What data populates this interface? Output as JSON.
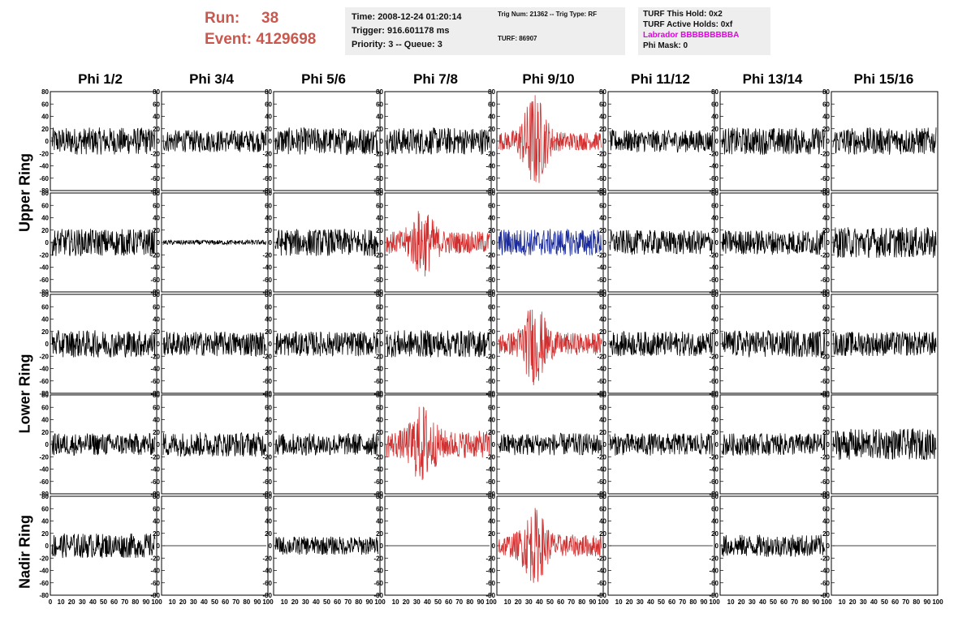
{
  "header": {
    "run_label": "Run:",
    "run_value": "38",
    "event_label": "Event:",
    "event_value": "4129698",
    "time": "Time: 2008-12-24 01:20:14",
    "trigger": "Trigger: 916.601178 ms",
    "priority": "Priority: 3 -- Queue: 3",
    "trig_num": "Trig Num: 21362 -- Trig Type: RF",
    "turf": "TURF: 86907",
    "turf_this_hold": "TURF This Hold: 0x2",
    "turf_active_holds": "TURF Active Holds: 0xf",
    "labrador": "Labrador BBBBBBBBBA",
    "phi_mask": "Phi Mask: 0"
  },
  "columns": [
    "Phi 1/2",
    "Phi 3/4",
    "Phi 5/6",
    "Phi 7/8",
    "Phi 9/10",
    "Phi 11/12",
    "Phi 13/14",
    "Phi 15/16"
  ],
  "rings": [
    "Upper Ring",
    "Lower Ring",
    "Nadir Ring"
  ],
  "colors": {
    "black": "#000000",
    "red": "#d03030",
    "blue": "#1a2a9a",
    "run_text": "#c9584f",
    "labrador": "#e600e6"
  },
  "chart_data": {
    "type": "line",
    "xlim": [
      0,
      100
    ],
    "ylim": [
      -80,
      80
    ],
    "x_ticks": [
      0,
      10,
      20,
      30,
      40,
      50,
      60,
      70,
      80,
      90,
      100
    ],
    "y_ticks": [
      -80,
      -60,
      -40,
      -20,
      0,
      20,
      40,
      60,
      80
    ],
    "note_series": "Each panel is a waveform trace (5 rows x 8 columns). Amplitude given in data units; shapes approximate the screenshot.",
    "panels": [
      [
        {
          "color": "black",
          "amp": 22,
          "burst": 0
        },
        {
          "color": "black",
          "amp": 18,
          "burst": 0
        },
        {
          "color": "black",
          "amp": 22,
          "burst": 0
        },
        {
          "color": "black",
          "amp": 22,
          "burst": 0
        },
        {
          "color": "red",
          "amp": 15,
          "burst": 65
        },
        {
          "color": "black",
          "amp": 18,
          "burst": 0
        },
        {
          "color": "black",
          "amp": 22,
          "burst": 0
        },
        {
          "color": "black",
          "amp": 22,
          "burst": 0
        }
      ],
      [
        {
          "color": "black",
          "amp": 22,
          "burst": 0
        },
        {
          "color": "black",
          "amp": 4,
          "burst": 0
        },
        {
          "color": "black",
          "amp": 22,
          "burst": 0
        },
        {
          "color": "red",
          "amp": 18,
          "burst": 40
        },
        {
          "color": "blue",
          "amp": 22,
          "burst": 0
        },
        {
          "color": "black",
          "amp": 20,
          "burst": 0
        },
        {
          "color": "black",
          "amp": 20,
          "burst": 0
        },
        {
          "color": "black",
          "amp": 25,
          "burst": 0
        }
      ],
      [
        {
          "color": "black",
          "amp": 22,
          "burst": 0
        },
        {
          "color": "black",
          "amp": 20,
          "burst": 0
        },
        {
          "color": "black",
          "amp": 20,
          "burst": 0
        },
        {
          "color": "black",
          "amp": 22,
          "burst": 0
        },
        {
          "color": "red",
          "amp": 18,
          "burst": 50
        },
        {
          "color": "black",
          "amp": 20,
          "burst": 0
        },
        {
          "color": "black",
          "amp": 22,
          "burst": 0
        },
        {
          "color": "black",
          "amp": 20,
          "burst": 0
        }
      ],
      [
        {
          "color": "black",
          "amp": 18,
          "burst": 0
        },
        {
          "color": "black",
          "amp": 20,
          "burst": 0
        },
        {
          "color": "black",
          "amp": 18,
          "burst": 0
        },
        {
          "color": "red",
          "amp": 22,
          "burst": 45
        },
        {
          "color": "black",
          "amp": 18,
          "burst": 0
        },
        {
          "color": "black",
          "amp": 18,
          "burst": 0
        },
        {
          "color": "black",
          "amp": 18,
          "burst": 0
        },
        {
          "color": "black",
          "amp": 25,
          "burst": 0
        }
      ],
      [
        {
          "color": "black",
          "amp": 20,
          "burst": 0
        },
        {
          "color": "black",
          "amp": 0,
          "burst": 0
        },
        {
          "color": "black",
          "amp": 15,
          "burst": 0
        },
        {
          "color": "black",
          "amp": 0,
          "burst": 0
        },
        {
          "color": "red",
          "amp": 18,
          "burst": 45
        },
        {
          "color": "black",
          "amp": 0,
          "burst": 0
        },
        {
          "color": "black",
          "amp": 18,
          "burst": 0
        },
        {
          "color": "black",
          "amp": 0,
          "burst": 0
        }
      ]
    ]
  }
}
